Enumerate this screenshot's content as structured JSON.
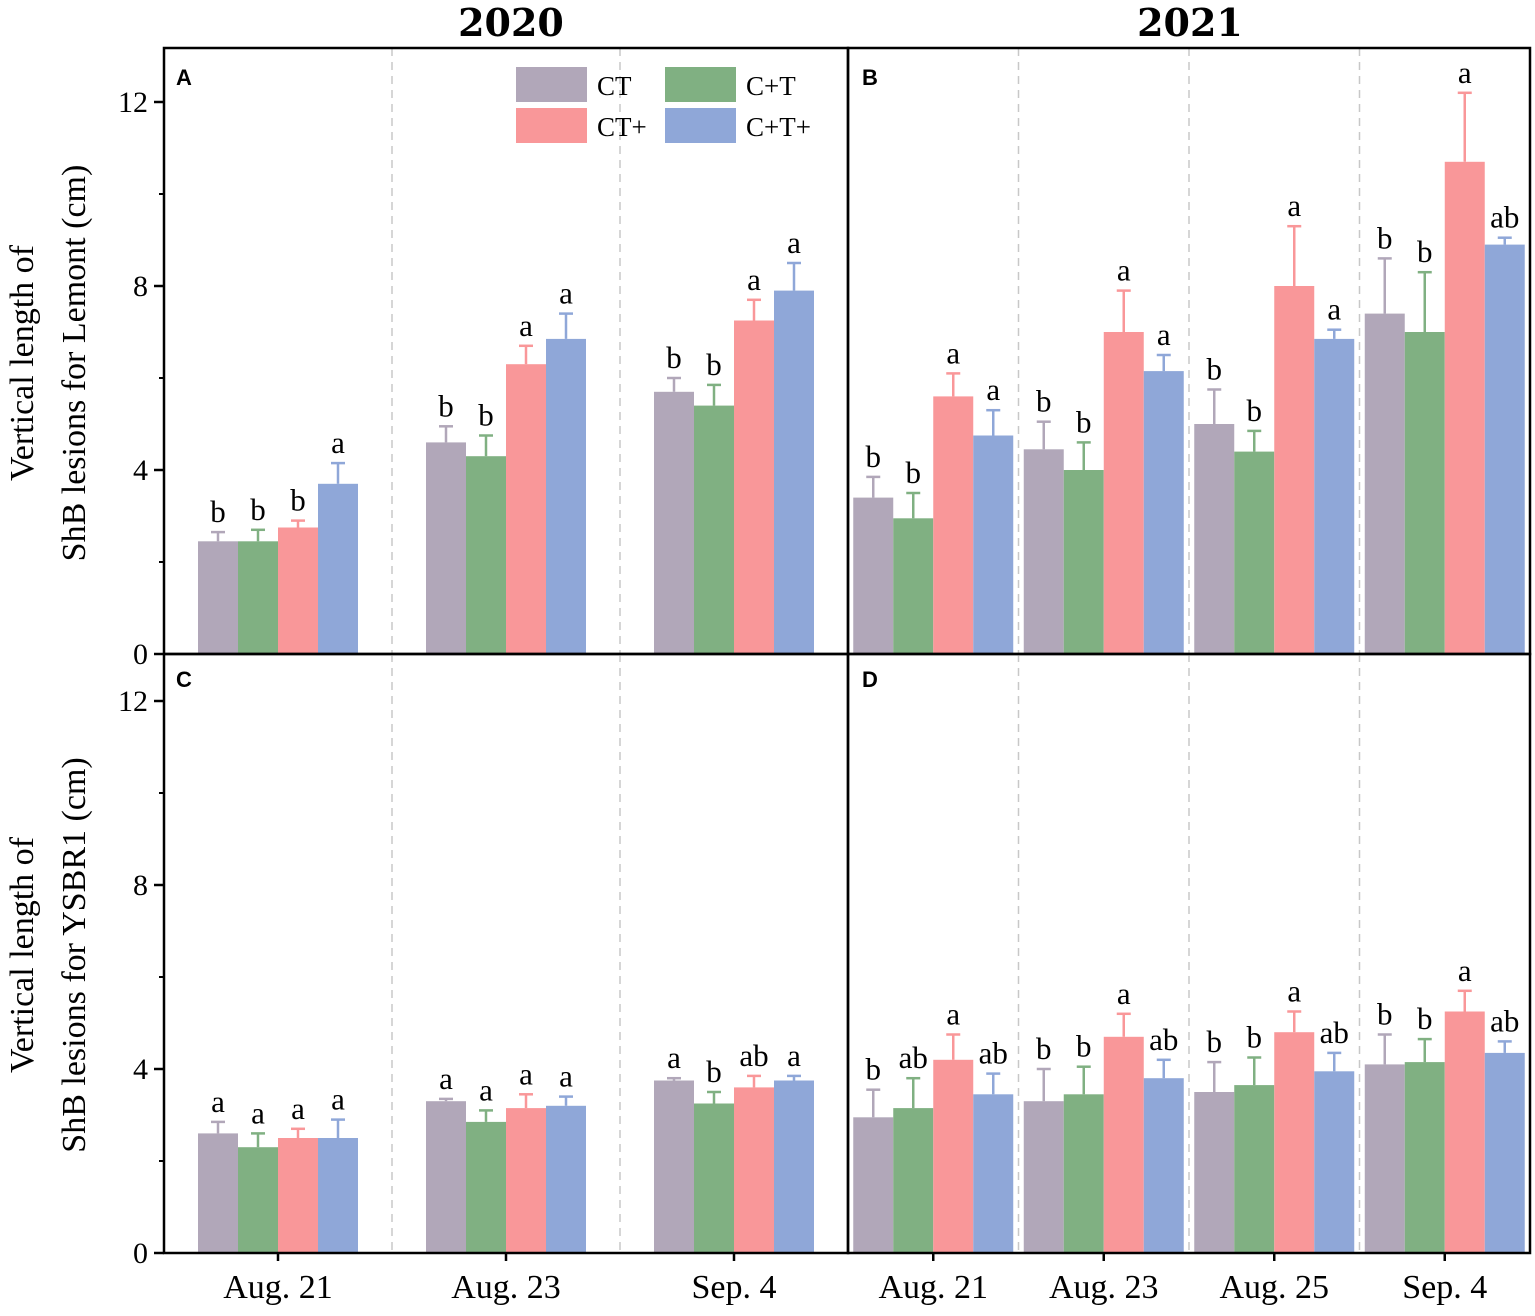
{
  "chart_data": {
    "type": "bar",
    "years": [
      "2020",
      "2021"
    ],
    "ylabels": {
      "top": [
        "Vertical length of",
        "ShB lesions for Lemont (cm)"
      ],
      "bottom": [
        "Vertical length of",
        "ShB lesions for YSBR1 (cm)"
      ]
    },
    "yticks": [
      0,
      4,
      8,
      12
    ],
    "ylim": [
      0,
      13
    ],
    "series_names": [
      "CT",
      "C+T",
      "CT+",
      "C+T+"
    ],
    "colors": {
      "CT": "#b1a7b9",
      "C+T": "#80b082",
      "CT+": "#f99799",
      "C+T+": "#8fa7d8"
    },
    "panels": [
      {
        "label": "A",
        "year": "2020",
        "variety": "Lemont",
        "categories": [
          "Aug. 21",
          "Aug. 23",
          "Sep. 4"
        ],
        "series": [
          {
            "name": "CT",
            "values": [
              2.45,
              4.6,
              5.7
            ],
            "errors": [
              0.2,
              0.35,
              0.3
            ],
            "letters": [
              "b",
              "b",
              "b"
            ]
          },
          {
            "name": "C+T",
            "values": [
              2.45,
              4.3,
              5.4
            ],
            "errors": [
              0.25,
              0.45,
              0.45
            ],
            "letters": [
              "b",
              "b",
              "b"
            ]
          },
          {
            "name": "CT+",
            "values": [
              2.75,
              6.3,
              7.25
            ],
            "errors": [
              0.15,
              0.4,
              0.45
            ],
            "letters": [
              "b",
              "a",
              "a"
            ]
          },
          {
            "name": "C+T+",
            "values": [
              3.7,
              6.85,
              7.9
            ],
            "errors": [
              0.45,
              0.55,
              0.6
            ],
            "letters": [
              "a",
              "a",
              "a"
            ]
          }
        ]
      },
      {
        "label": "B",
        "year": "2021",
        "variety": "Lemont",
        "categories": [
          "Aug. 21",
          "Aug. 23",
          "Aug. 25",
          "Sep. 4"
        ],
        "series": [
          {
            "name": "CT",
            "values": [
              3.4,
              4.45,
              5.0,
              7.4
            ],
            "errors": [
              0.45,
              0.6,
              0.75,
              1.2
            ],
            "letters": [
              "b",
              "b",
              "b",
              "b"
            ]
          },
          {
            "name": "C+T",
            "values": [
              2.95,
              4.0,
              4.4,
              7.0
            ],
            "errors": [
              0.55,
              0.6,
              0.45,
              1.3
            ],
            "letters": [
              "b",
              "b",
              "b",
              "b"
            ]
          },
          {
            "name": "CT+",
            "values": [
              5.6,
              7.0,
              8.0,
              10.7
            ],
            "errors": [
              0.5,
              0.9,
              1.3,
              1.5
            ],
            "letters": [
              "a",
              "a",
              "a",
              "a"
            ]
          },
          {
            "name": "C+T+",
            "values": [
              4.75,
              6.15,
              6.85,
              8.9
            ],
            "errors": [
              0.55,
              0.35,
              0.2,
              0.15
            ],
            "letters": [
              "a",
              "a",
              "a",
              "ab"
            ]
          }
        ]
      },
      {
        "label": "C",
        "year": "2020",
        "variety": "YSBR1",
        "categories": [
          "Aug. 21",
          "Aug. 23",
          "Sep. 4"
        ],
        "series": [
          {
            "name": "CT",
            "values": [
              2.6,
              3.3,
              3.75
            ],
            "errors": [
              0.25,
              0.05,
              0.05
            ],
            "letters": [
              "a",
              "a",
              "a"
            ]
          },
          {
            "name": "C+T",
            "values": [
              2.3,
              2.85,
              3.25
            ],
            "errors": [
              0.3,
              0.25,
              0.25
            ],
            "letters": [
              "a",
              "a",
              "b"
            ]
          },
          {
            "name": "CT+",
            "values": [
              2.5,
              3.15,
              3.6
            ],
            "errors": [
              0.2,
              0.3,
              0.25
            ],
            "letters": [
              "a",
              "a",
              "ab"
            ]
          },
          {
            "name": "C+T+",
            "values": [
              2.5,
              3.2,
              3.75
            ],
            "errors": [
              0.4,
              0.2,
              0.1
            ],
            "letters": [
              "a",
              "a",
              "a"
            ]
          }
        ]
      },
      {
        "label": "D",
        "year": "2021",
        "variety": "YSBR1",
        "categories": [
          "Aug. 21",
          "Aug. 23",
          "Aug. 25",
          "Sep. 4"
        ],
        "series": [
          {
            "name": "CT",
            "values": [
              2.95,
              3.3,
              3.5,
              4.1
            ],
            "errors": [
              0.6,
              0.7,
              0.65,
              0.65
            ],
            "letters": [
              "b",
              "b",
              "b",
              "b"
            ]
          },
          {
            "name": "C+T",
            "values": [
              3.15,
              3.45,
              3.65,
              4.15
            ],
            "errors": [
              0.65,
              0.6,
              0.6,
              0.5
            ],
            "letters": [
              "ab",
              "b",
              "b",
              "b"
            ]
          },
          {
            "name": "CT+",
            "values": [
              4.2,
              4.7,
              4.8,
              5.25
            ],
            "errors": [
              0.55,
              0.5,
              0.45,
              0.45
            ],
            "letters": [
              "a",
              "a",
              "a",
              "a"
            ]
          },
          {
            "name": "C+T+",
            "values": [
              3.45,
              3.8,
              3.95,
              4.35
            ],
            "errors": [
              0.45,
              0.4,
              0.4,
              0.25
            ],
            "letters": [
              "ab",
              "ab",
              "ab",
              "ab"
            ]
          }
        ]
      }
    ]
  }
}
